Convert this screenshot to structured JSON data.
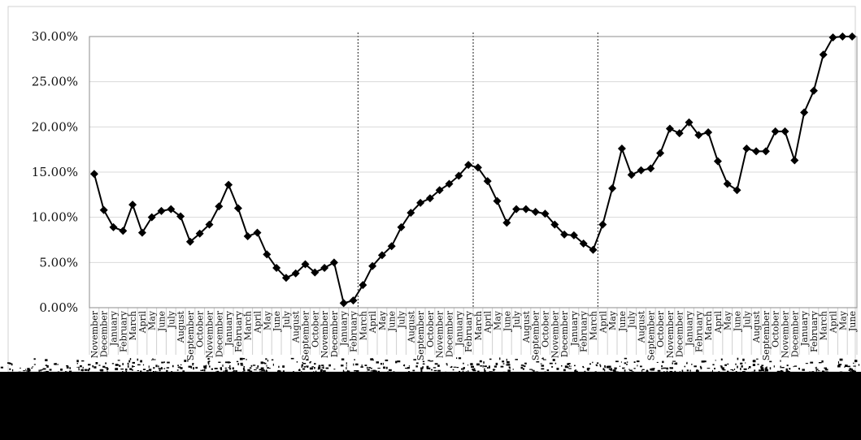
{
  "chart_data": {
    "type": "line",
    "title": "",
    "xlabel": "",
    "ylabel": "",
    "ylim": [
      0,
      30
    ],
    "y_format": "percent_2dp",
    "y_ticks": [
      0,
      5,
      10,
      15,
      20,
      25,
      30
    ],
    "y_tick_labels": [
      "0.00%",
      "5.00%",
      "10.00%",
      "15.00%",
      "20.00%",
      "25.00%",
      "30.00%"
    ],
    "grid": "horizontal",
    "legend": "none",
    "line_color": "#000000",
    "marker": "diamond",
    "vertical_dividers_after_category_index": [
      28,
      40,
      53
    ],
    "categories": [
      "November",
      "December",
      "January",
      "February",
      "March",
      "April",
      "May",
      "June",
      "July",
      "August",
      "September",
      "October",
      "November",
      "December",
      "January",
      "February",
      "March",
      "April",
      "May",
      "June",
      "July",
      "August",
      "September",
      "October",
      "November",
      "December",
      "January",
      "February",
      "March",
      "April",
      "May",
      "June",
      "July",
      "August",
      "September",
      "October",
      "November",
      "December",
      "January",
      "February",
      "March",
      "April",
      "May",
      "June",
      "July",
      "August",
      "September",
      "October",
      "November",
      "December",
      "January",
      "February",
      "March",
      "April",
      "May",
      "June",
      "July",
      "August",
      "September",
      "October",
      "November",
      "December",
      "January",
      "February",
      "March",
      "April",
      "May",
      "June",
      "July",
      "August",
      "September",
      "October",
      "November",
      "December",
      "January",
      "February",
      "March",
      "April",
      "May",
      "June"
    ],
    "series": [
      {
        "values": [
          14.8,
          10.8,
          8.9,
          8.5,
          11.4,
          8.3,
          10.0,
          10.7,
          10.9,
          10.1,
          7.3,
          8.2,
          9.2,
          11.2,
          13.6,
          11.0,
          7.9,
          8.3,
          5.9,
          4.4,
          3.3,
          3.8,
          4.8,
          3.9,
          4.4,
          5.0,
          0.5,
          0.8,
          2.5,
          4.6,
          5.8,
          6.8,
          8.9,
          10.5,
          11.6,
          12.1,
          13.0,
          13.7,
          14.6,
          15.8,
          15.5,
          14.0,
          11.8,
          9.4,
          10.9,
          10.9,
          10.6,
          10.4,
          9.2,
          8.1,
          8.0,
          7.1,
          6.4,
          9.2,
          13.2,
          17.6,
          14.7,
          15.2,
          15.4,
          17.1,
          19.8,
          19.3,
          20.5,
          19.1,
          19.4,
          16.2,
          13.7,
          13.0,
          17.6,
          17.3,
          17.3,
          19.5,
          19.5,
          16.3,
          21.6,
          24.0,
          28.0,
          29.9,
          30.0,
          30.0
        ]
      }
    ]
  }
}
